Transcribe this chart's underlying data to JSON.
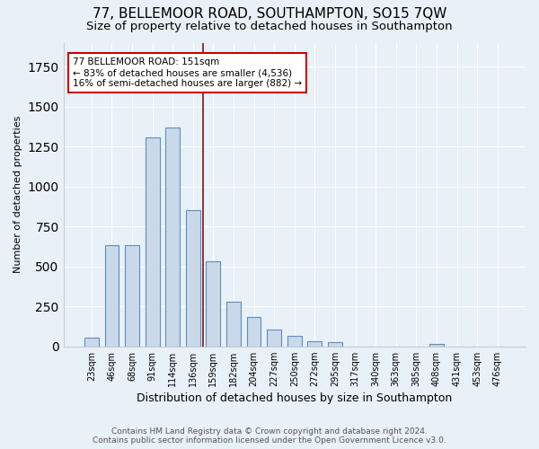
{
  "title": "77, BELLEMOOR ROAD, SOUTHAMPTON, SO15 7QW",
  "subtitle": "Size of property relative to detached houses in Southampton",
  "xlabel": "Distribution of detached houses by size in Southampton",
  "ylabel": "Number of detached properties",
  "categories": [
    "23sqm",
    "46sqm",
    "68sqm",
    "91sqm",
    "114sqm",
    "136sqm",
    "159sqm",
    "182sqm",
    "204sqm",
    "227sqm",
    "250sqm",
    "272sqm",
    "295sqm",
    "317sqm",
    "340sqm",
    "363sqm",
    "385sqm",
    "408sqm",
    "431sqm",
    "453sqm",
    "476sqm"
  ],
  "values": [
    55,
    635,
    635,
    1305,
    1370,
    850,
    530,
    280,
    185,
    105,
    65,
    30,
    25,
    0,
    0,
    0,
    0,
    15,
    0,
    0,
    0
  ],
  "bar_color": "#c9d9ea",
  "bar_edge_color": "#5b8ec4",
  "vline_x": 5.5,
  "vline_color": "#8b1010",
  "annotation_text": "77 BELLEMOOR ROAD: 151sqm\n← 83% of detached houses are smaller (4,536)\n16% of semi-detached houses are larger (882) →",
  "annotation_box_color": "#ffffff",
  "annotation_box_edge": "#cc0000",
  "background_color": "#e8f0f8",
  "footer_line1": "Contains HM Land Registry data © Crown copyright and database right 2024.",
  "footer_line2": "Contains public sector information licensed under the Open Government Licence v3.0.",
  "ylim": [
    0,
    1900
  ],
  "bar_width": 0.7,
  "title_fontsize": 11,
  "subtitle_fontsize": 9.5
}
